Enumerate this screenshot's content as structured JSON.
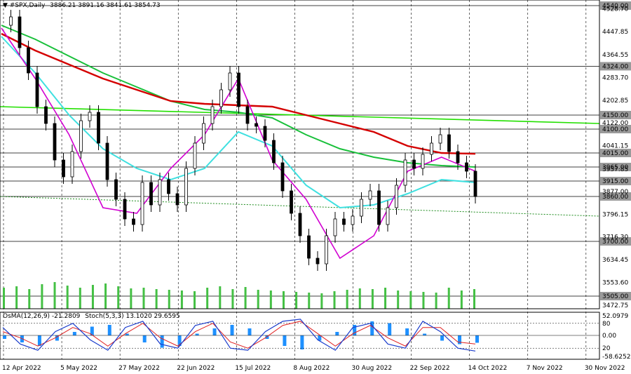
{
  "header": {
    "symbol": "#SPX,Daily",
    "ohlc": "3886.21 3891.16 3841.61 3854.73"
  },
  "colors": {
    "candle": "#000000",
    "ema200": "#d40000",
    "ema144": "#18c03a",
    "ema50": "#3fe0e0",
    "ema12": "#d100d1",
    "long_green": "#22e000",
    "volume": "#44c044",
    "osma_hist": "#1e90ff",
    "stoch_main": "#1a3ccc",
    "stoch_signal": "#e02020"
  },
  "chart_data": {
    "type": "line",
    "title": "#SPX,Daily",
    "price_axis_ticks": [
      "4528.70",
      "4447.85",
      "4364.55",
      "4283.70",
      "4202.85",
      "4122.00",
      "4041.15",
      "3957.85",
      "3877.00",
      "3796.15",
      "3716.30",
      "3634.45",
      "3553.60",
      "3472.75"
    ],
    "ylim": [
      3460,
      4560
    ],
    "highlighted_levels": [
      {
        "label": "4540.00",
        "value": 4540,
        "box": "gray"
      },
      {
        "label": "4324.00",
        "value": 4324,
        "box": "gray"
      },
      {
        "label": "4150.00",
        "value": 4150,
        "box": "gray"
      },
      {
        "label": "4100.00",
        "value": 4100,
        "box": "gray"
      },
      {
        "label": "4015.00",
        "value": 4015,
        "box": "gray"
      },
      {
        "label": "3965.00",
        "value": 3965,
        "box": "gray"
      },
      {
        "label": "3915.00",
        "value": 3915,
        "box": "gray"
      },
      {
        "label": "3860.00",
        "value": 3860,
        "box": "gray"
      },
      {
        "label": "3700.00",
        "value": 3700,
        "box": "gray"
      },
      {
        "label": "3505.00",
        "value": 3505,
        "box": "gray"
      }
    ],
    "x_labels": [
      "12 Apr 2022",
      "5 May 2022",
      "27 May 2022",
      "22 Jun 2022",
      "15 Jul 2022",
      "8 Aug 2022",
      "30 Aug 2022",
      "22 Sep 2022",
      "14 Oct 2022",
      "7 Nov 2022",
      "30 Nov 2022"
    ],
    "price_path": [
      4470,
      4500,
      4390,
      4300,
      4180,
      4120,
      3990,
      3930,
      4020,
      4130,
      4160,
      4050,
      3920,
      3850,
      3780,
      3760,
      3910,
      3830,
      3920,
      3870,
      3830,
      3960,
      4050,
      4120,
      4180,
      4240,
      4300,
      4180,
      4120,
      4110,
      4060,
      3980,
      3880,
      3800,
      3720,
      3640,
      3620,
      3720,
      3780,
      3760,
      3790,
      3850,
      3880,
      3760,
      3820,
      3900,
      3990,
      3960,
      4010,
      4050,
      4080,
      4020,
      3980,
      3950,
      3860
    ],
    "ema200_path": [
      4440,
      4380,
      4330,
      4280,
      4240,
      4200,
      4190,
      4185,
      4180,
      4150,
      4120,
      4090,
      4040,
      4015,
      4012
    ],
    "ema144_path": [
      4470,
      4420,
      4360,
      4300,
      4250,
      4200,
      4170,
      4160,
      4140,
      4080,
      4030,
      4000,
      3980,
      3970,
      3965
    ],
    "ema50_path": [
      4430,
      4300,
      4150,
      4030,
      3960,
      3920,
      3960,
      4090,
      4040,
      3900,
      3820,
      3830,
      3870,
      3920,
      3910
    ],
    "ema12_path": [
      4460,
      4280,
      4080,
      3820,
      3800,
      3960,
      4080,
      4280,
      3990,
      3850,
      3640,
      3720,
      3950,
      4000,
      3950
    ],
    "long_green_line": {
      "start": 4180,
      "end": 4120
    },
    "trend_line": {
      "start": 3860,
      "end": 3790
    },
    "osma_indicator": {
      "label": "OsMA(12,26,9) -21.2809",
      "range_labels": [
        "52.0979",
        "0.00",
        "-58.6252"
      ],
      "hist_path": [
        -10,
        -20,
        -30,
        -15,
        10,
        25,
        30,
        5,
        -20,
        -35,
        -30,
        5,
        20,
        30,
        20,
        -10,
        -30,
        -40,
        -15,
        10,
        30,
        40,
        35,
        20,
        5,
        -15,
        -25,
        -21
      ]
    },
    "stochastic": {
      "label": "Stoch(5,3,3) 13.1020 29.6595",
      "levels": [
        "80",
        "20"
      ],
      "main_path": [
        70,
        30,
        15,
        60,
        80,
        40,
        15,
        70,
        85,
        30,
        20,
        75,
        85,
        20,
        15,
        60,
        85,
        90,
        40,
        15,
        70,
        80,
        30,
        20,
        85,
        60,
        20,
        13
      ],
      "signal_path": [
        60,
        45,
        25,
        45,
        70,
        55,
        25,
        55,
        80,
        45,
        25,
        60,
        80,
        35,
        20,
        45,
        75,
        85,
        55,
        25,
        55,
        75,
        45,
        25,
        70,
        70,
        35,
        30
      ]
    },
    "volume_path": [
      30,
      32,
      28,
      35,
      38,
      33,
      30,
      34,
      36,
      32,
      29,
      30,
      28,
      27,
      26,
      25,
      30,
      32,
      28,
      31,
      27,
      26,
      25,
      24,
      23,
      22,
      25,
      27,
      29,
      28,
      30,
      26,
      25,
      24,
      23,
      30,
      26,
      28
    ]
  }
}
